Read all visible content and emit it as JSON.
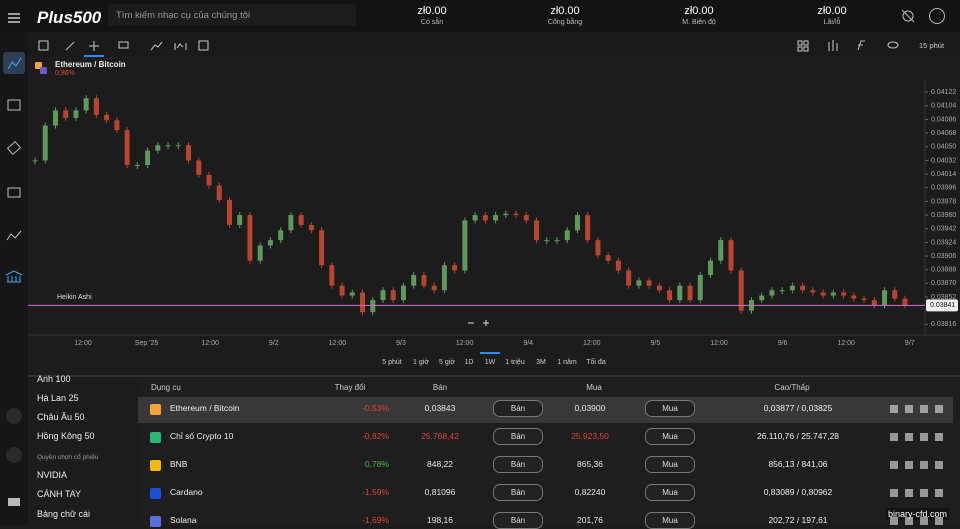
{
  "header": {
    "logo": "Plus500",
    "search_placeholder": "Tìm kiếm nhạc cụ của chúng tôi",
    "stats": [
      {
        "value": "zł0.00",
        "label": "Có sẵn"
      },
      {
        "value": "zł0.00",
        "label": "Công bằng"
      },
      {
        "value": "zł0.00",
        "label": "M. Biên độ"
      },
      {
        "value": "zł0.00",
        "label": "Lãi/lỗ"
      }
    ]
  },
  "toolbar": {
    "interval": "15 phút"
  },
  "instrument": {
    "name": "Ethereum / Bitcoin",
    "change": "0,86%"
  },
  "chart_data": {
    "type": "candlestick",
    "indicator": "Heikin Ashi",
    "up_color": "#5f9a5c",
    "down_color": "#b9442f",
    "line_color": "#d86ad8",
    "series": [
      {
        "name": "Ethereum / Bitcoin",
        "values": [
          0.04032,
          0.04078,
          0.04098,
          0.04088,
          0.04098,
          0.04114,
          0.04092,
          0.04085,
          0.04072,
          0.04026,
          0.04026,
          0.04045,
          0.04052,
          0.04052,
          0.04052,
          0.04032,
          0.04013,
          0.03999,
          0.0398,
          0.03947,
          0.0396,
          0.039,
          0.0392,
          0.03927,
          0.0394,
          0.0396,
          0.03947,
          0.0394,
          0.03894,
          0.03867,
          0.03854,
          0.03858,
          0.03832,
          0.03848,
          0.03861,
          0.03848,
          0.03867,
          0.03881,
          0.03867,
          0.03861,
          0.03894,
          0.03887,
          0.03953,
          0.0396,
          0.03953,
          0.0396,
          0.03962,
          0.0396,
          0.03953,
          0.03927,
          0.03927,
          0.03927,
          0.0394,
          0.0396,
          0.03927,
          0.03907,
          0.039,
          0.03887,
          0.03867,
          0.03874,
          0.03867,
          0.03861,
          0.03848,
          0.03867,
          0.03848,
          0.03881,
          0.039,
          0.03927,
          0.03887,
          0.03834,
          0.03848,
          0.03854,
          0.03861,
          0.03861,
          0.03867,
          0.03861,
          0.03858,
          0.03854,
          0.03858,
          0.03854,
          0.0385,
          0.03848,
          0.03841,
          0.03861,
          0.0385,
          0.03841
        ]
      }
    ],
    "current_price": {
      "value": 0.03841,
      "label": "0.03841"
    },
    "ylim": [
      0.03802,
      0.04138
    ],
    "yticks": [
      {
        "value": 0.04122,
        "label": "0.04122"
      },
      {
        "value": 0.04104,
        "label": "0.04104"
      },
      {
        "value": 0.04086,
        "label": "0.04086"
      },
      {
        "value": 0.04068,
        "label": "0.04068"
      },
      {
        "value": 0.0405,
        "label": "0.04050"
      },
      {
        "value": 0.04032,
        "label": "0.04032"
      },
      {
        "value": 0.04014,
        "label": "0.04014"
      },
      {
        "value": 0.03996,
        "label": "0.03996"
      },
      {
        "value": 0.03978,
        "label": "0.03978"
      },
      {
        "value": 0.0396,
        "label": "0.03960"
      },
      {
        "value": 0.03942,
        "label": "0.03942"
      },
      {
        "value": 0.03924,
        "label": "0.03924"
      },
      {
        "value": 0.03906,
        "label": "0.03906"
      },
      {
        "value": 0.03888,
        "label": "0.03888"
      },
      {
        "value": 0.0387,
        "label": "0.03870"
      },
      {
        "value": 0.03852,
        "label": "0.03852"
      },
      {
        "value": 0.03816,
        "label": "0.03816"
      }
    ],
    "xtick_labels": [
      "12:00",
      "Sep '25",
      "12:00",
      "9/2",
      "12:00",
      "9/3",
      "12:00",
      "9/4",
      "12:00",
      "9/5",
      "12:00",
      "9/6",
      "12:00",
      "9/7"
    ]
  },
  "timeframes": {
    "items": [
      "5 phút",
      "1 giờ",
      "5 giờ",
      "1D",
      "1W",
      "1 triệu",
      "3M",
      "1 năm",
      "Tối đa"
    ],
    "active": 4
  },
  "sidebar": {
    "items": [
      "Anh 100",
      "Hà Lan 25",
      "Châu Âu 50",
      "Hồng Kông 50"
    ],
    "section": "Quyền chọn cổ phiếu",
    "section_items": [
      "NVIDIA",
      "CÁNH TAY",
      "Bảng chữ cái"
    ]
  },
  "table": {
    "headers": [
      "Dụng cụ",
      "Thay đổi",
      "Bán",
      "Mua",
      "Cao/Thấp"
    ],
    "sell_button": "Bán",
    "buy_button": "Mua",
    "rows": [
      {
        "icon_color": "#f2a33a",
        "name": "Ethereum / Bitcoin",
        "change": "-0,53%",
        "change_color": "#e0443c",
        "sell": "0,03843",
        "sell_color": "#e6e6e6",
        "buy": "0,03900",
        "buy_color": "#e6e6e6",
        "high_low": "0,03877 / 0,03825"
      },
      {
        "icon_color": "#2bb673",
        "name": "Chỉ số Crypto 10",
        "change": "-0,82%",
        "change_color": "#e0443c",
        "sell": "25.768,42",
        "sell_color": "#e0443c",
        "buy": "25.923,50",
        "buy_color": "#e0443c",
        "high_low": "26.110,76 / 25.747,28"
      },
      {
        "icon_color": "#f0b90b",
        "name": "BNB",
        "change": "0,78%",
        "change_color": "#4caf50",
        "sell": "848,22",
        "sell_color": "#e6e6e6",
        "buy": "865,36",
        "buy_color": "#e6e6e6",
        "high_low": "856,13 / 841,06"
      },
      {
        "icon_color": "#1a4fd6",
        "name": "Cardano",
        "change": "-1,59%",
        "change_color": "#e0443c",
        "sell": "0,81096",
        "sell_color": "#e6e6e6",
        "buy": "0,82240",
        "buy_color": "#e6e6e6",
        "high_low": "0,83089 / 0,80962"
      },
      {
        "icon_color": "#5b6ee1",
        "name": "Solana",
        "change": "-1,69%",
        "change_color": "#e0443c",
        "sell": "198,16",
        "sell_color": "#e6e6e6",
        "buy": "201,76",
        "buy_color": "#e6e6e6",
        "high_low": "202,72 / 197,61"
      }
    ]
  },
  "watermark": "binary-cfd.com"
}
